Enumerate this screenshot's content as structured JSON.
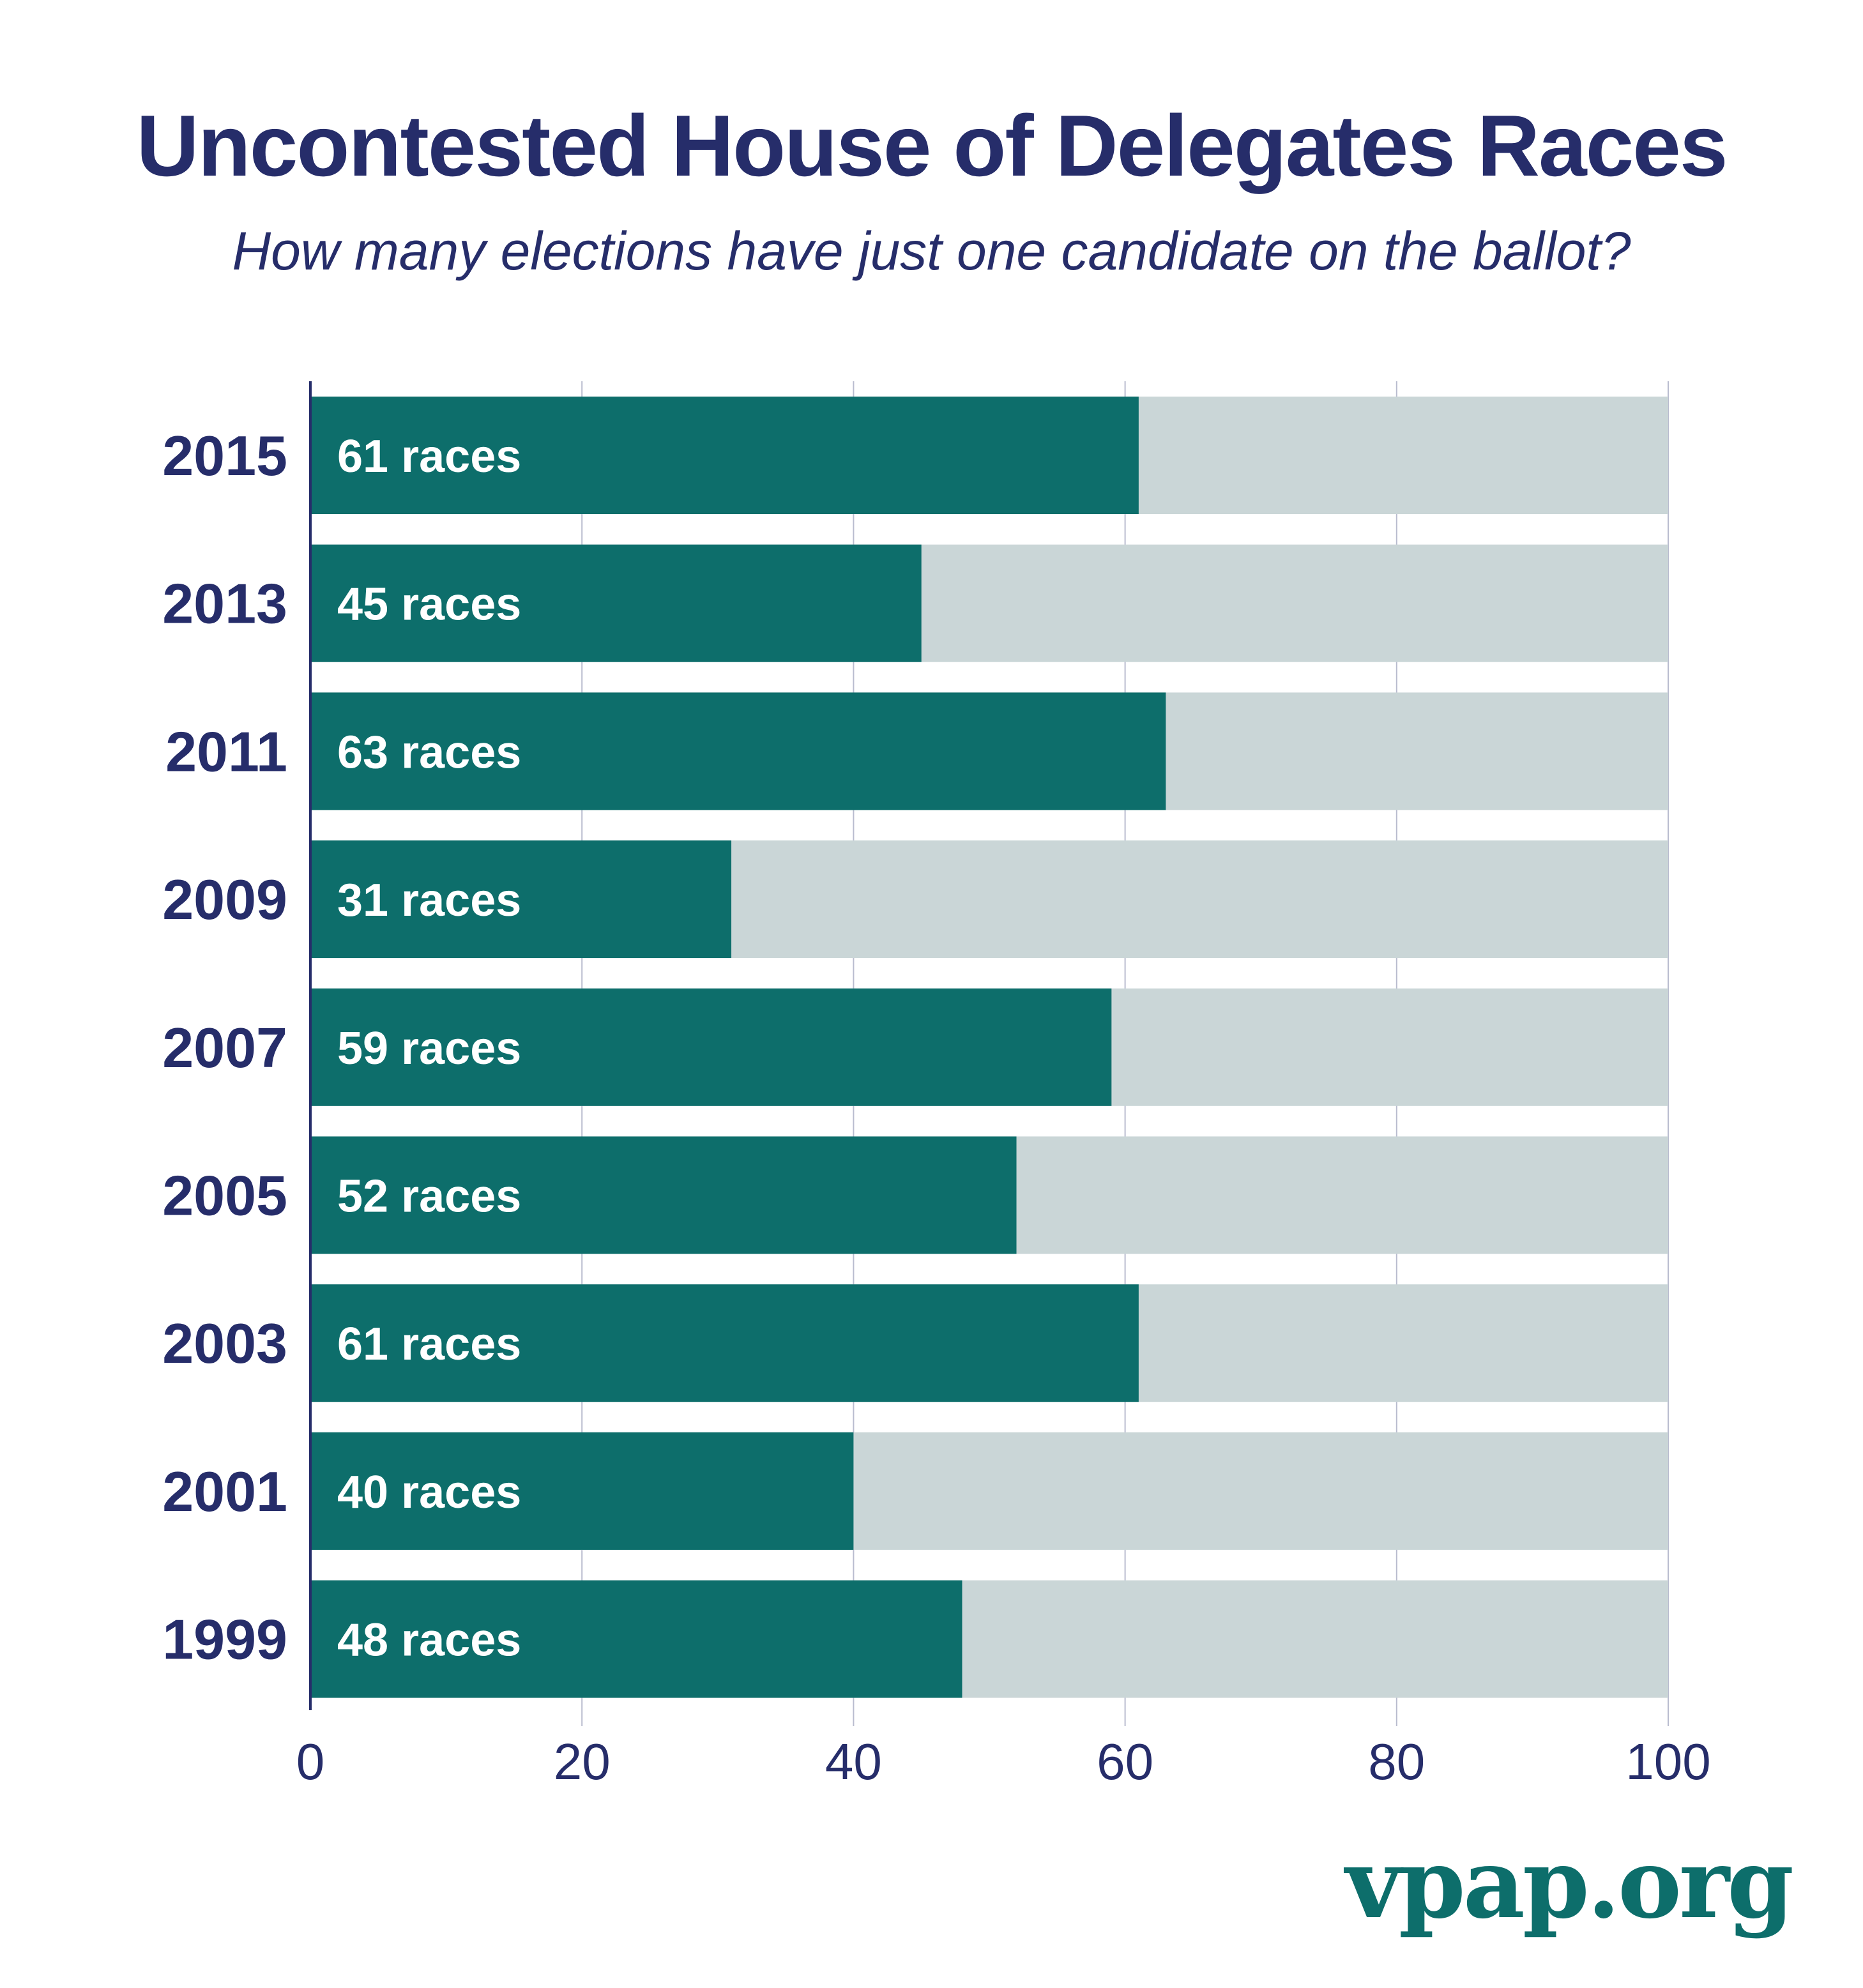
{
  "chart_data": {
    "type": "bar",
    "orientation": "horizontal",
    "title": "Uncontested House of Delegates Races",
    "subtitle": "How many elections have just one candidate on the ballot?",
    "categories": [
      "2015",
      "2013",
      "2011",
      "2009",
      "2007",
      "2005",
      "2003",
      "2001",
      "1999"
    ],
    "values": [
      61,
      45,
      63,
      31,
      59,
      52,
      61,
      40,
      48
    ],
    "data_labels": [
      "61 races",
      "45 races",
      "63 races",
      "31 races",
      "59 races",
      "52 races",
      "61 races",
      "40 races",
      "48 races"
    ],
    "total": 100,
    "xlim": [
      0,
      100
    ],
    "xticks": [
      "0",
      "20",
      "40",
      "60",
      "80",
      "100"
    ],
    "xlabel": "",
    "ylabel": "",
    "grid": true,
    "colors": {
      "bar": "#0d6e6b",
      "background_bar": "#cad6d7",
      "text": "#262d6a",
      "grid": "#b9bccf"
    }
  },
  "brand": "vpap.org"
}
